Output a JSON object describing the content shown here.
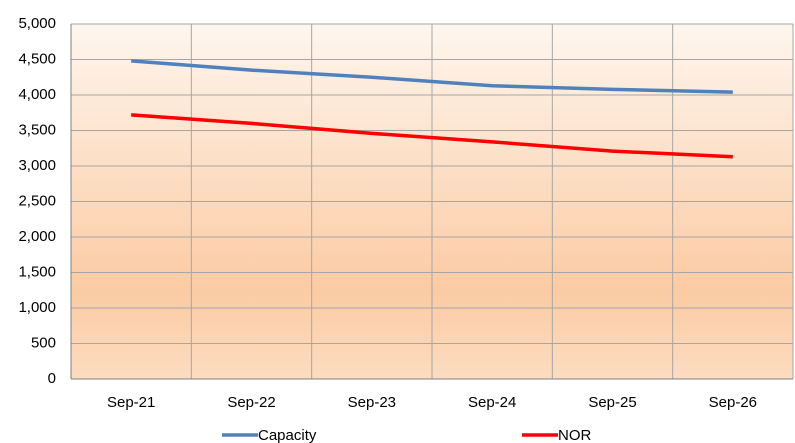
{
  "chart_data": {
    "type": "line",
    "categories": [
      "Sep-21",
      "Sep-22",
      "Sep-23",
      "Sep-24",
      "Sep-25",
      "Sep-26"
    ],
    "series": [
      {
        "name": "Capacity",
        "color": "#4f81bd",
        "values": [
          4480,
          4350,
          4250,
          4130,
          4080,
          4040
        ]
      },
      {
        "name": "NOR",
        "color": "#ff0000",
        "values": [
          3720,
          3600,
          3460,
          3340,
          3210,
          3130
        ]
      }
    ],
    "ylim": [
      0,
      5000
    ],
    "yticks": [
      0,
      500,
      {
        "value": 1000,
        "label": "1,000"
      },
      {
        "value": 1500,
        "label": "1,500"
      },
      {
        "value": 2000,
        "label": "2,000"
      },
      {
        "value": 2500,
        "label": "2,500"
      },
      {
        "value": 3000,
        "label": "3,000"
      },
      {
        "value": 3500,
        "label": "3,500"
      },
      {
        "value": 4000,
        "label": "4,000"
      },
      {
        "value": 4500,
        "label": "4,500"
      },
      {
        "value": 5000,
        "label": "5,000"
      }
    ],
    "grid": true,
    "legend": "bottom"
  }
}
